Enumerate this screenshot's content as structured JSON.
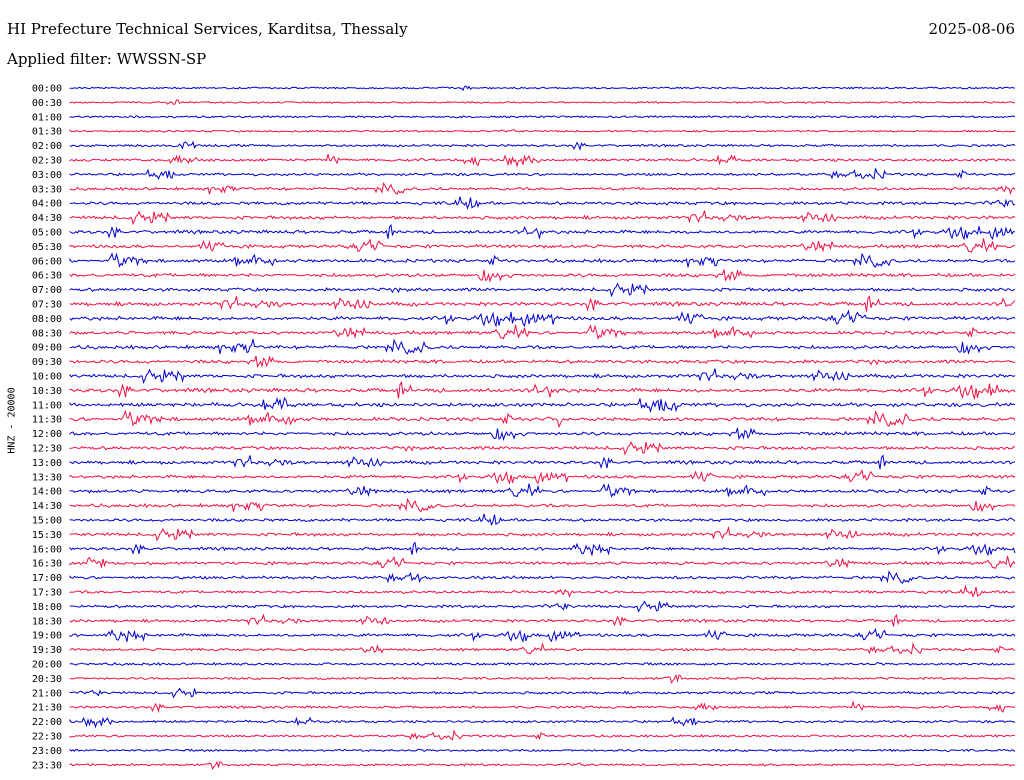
{
  "header": {
    "title": "HI Prefecture Technical Services, Karditsa, Thessaly",
    "date": "2025-08-06",
    "filter": "Applied filter: WWSSN-SP"
  },
  "chart_data": {
    "type": "line",
    "title": "HI Prefecture Technical Services, Karditsa, Thessaly",
    "ylabel": "HNZ - 20000",
    "rows": [
      "00:00",
      "00:30",
      "01:00",
      "01:30",
      "02:00",
      "02:30",
      "03:00",
      "03:30",
      "04:00",
      "04:30",
      "05:00",
      "05:30",
      "06:00",
      "06:30",
      "07:00",
      "07:30",
      "08:00",
      "08:30",
      "09:00",
      "09:30",
      "10:00",
      "10:30",
      "11:00",
      "11:30",
      "12:00",
      "12:30",
      "13:00",
      "13:30",
      "14:00",
      "14:30",
      "15:00",
      "15:30",
      "16:00",
      "16:30",
      "17:00",
      "17:30",
      "18:00",
      "18:30",
      "19:00",
      "19:30",
      "20:00",
      "20:30",
      "21:00",
      "21:30",
      "22:00",
      "22:30",
      "23:00",
      "23:30"
    ],
    "activity": [
      0.15,
      0.15,
      0.2,
      0.15,
      0.3,
      0.45,
      0.4,
      0.45,
      0.55,
      0.6,
      0.6,
      0.6,
      0.6,
      0.65,
      0.6,
      0.7,
      0.7,
      0.6,
      0.65,
      0.65,
      0.65,
      0.75,
      0.75,
      0.7,
      0.65,
      0.6,
      0.6,
      0.55,
      0.55,
      0.55,
      0.5,
      0.55,
      0.5,
      0.5,
      0.5,
      0.45,
      0.45,
      0.45,
      0.5,
      0.35,
      0.35,
      0.3,
      0.35,
      0.35,
      0.35,
      0.3,
      0.25,
      0.25
    ],
    "colors": [
      "#0000cc",
      "#ee1144"
    ]
  }
}
